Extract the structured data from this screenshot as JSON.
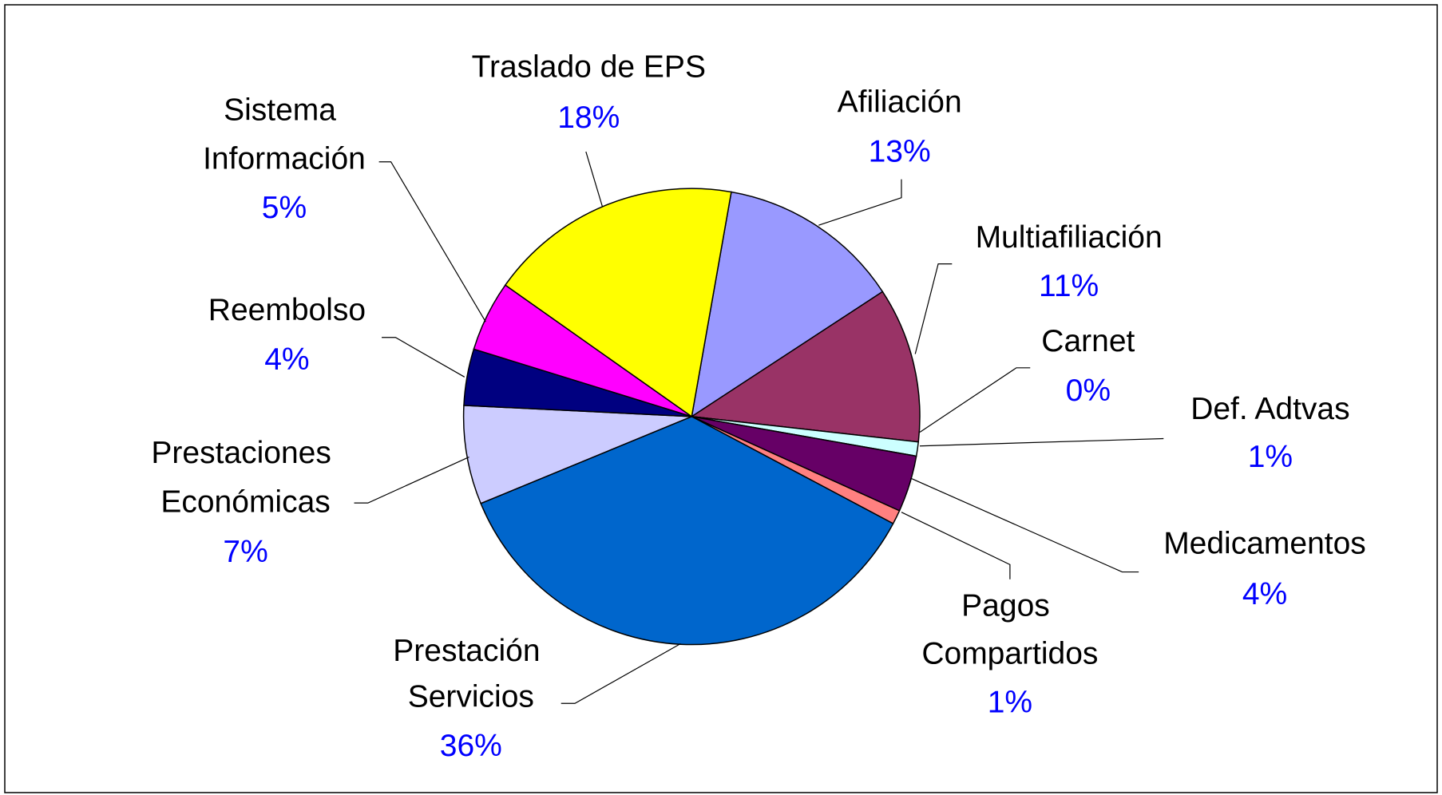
{
  "chart_data": {
    "type": "pie",
    "categories": [
      "Afiliación",
      "Multiafiliación",
      "Carnet",
      "Def. Adtvas",
      "Medicamentos",
      "Pagos Compartidos",
      "Prestación Servicios",
      "Prestaciones Económicas",
      "Reembolso",
      "Sistema Información",
      "Traslado de EPS"
    ],
    "values": [
      13,
      11,
      0,
      1,
      4,
      1,
      36,
      7,
      4,
      5,
      18
    ],
    "value_labels": [
      "13%",
      "11%",
      "0%",
      "1%",
      "4%",
      "1%",
      "36%",
      "7%",
      "4%",
      "5%",
      "18%"
    ],
    "colors": [
      "#9999ff",
      "#993366",
      "#ffffcc",
      "#ccffff",
      "#660066",
      "#ff8080",
      "#0066cc",
      "#ccccff",
      "#000080",
      "#ff00ff",
      "#ffff00"
    ]
  }
}
